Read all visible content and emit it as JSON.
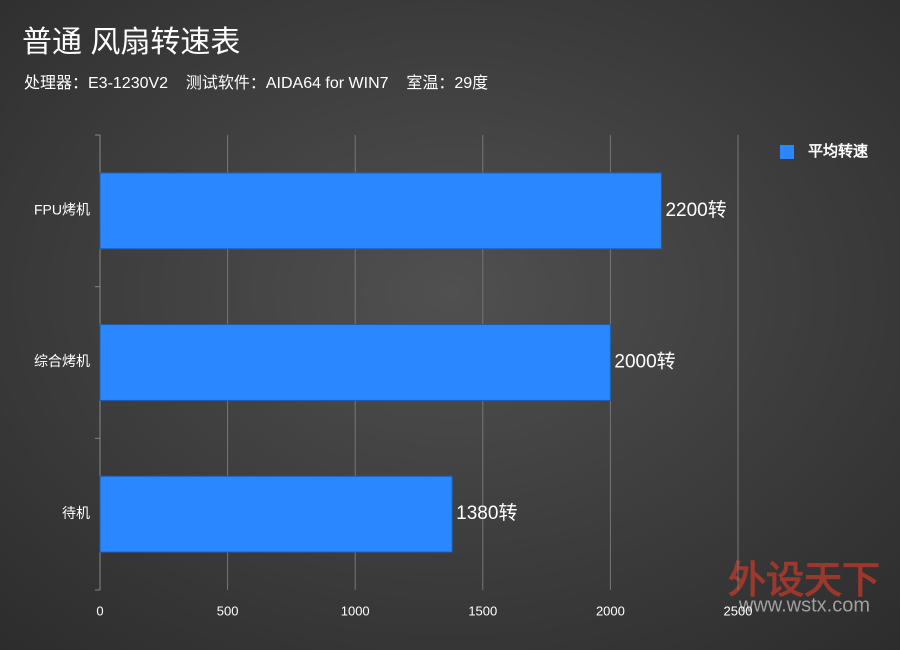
{
  "chart_data": {
    "type": "hbar",
    "title": "普通 风扇转速表",
    "subtitle": "处理器：E3-1230V2    测试软件：AIDA64 for WIN7    室温：29度",
    "categories": [
      "FPU烤机",
      "综合烤机",
      "待机"
    ],
    "series": [
      {
        "name": "平均转速",
        "color": "#2b87ff",
        "values": [
          2200,
          2000,
          1380
        ],
        "value_labels": [
          "2200转",
          "2000转",
          "1380转"
        ]
      }
    ],
    "xlim": [
      0,
      2500
    ],
    "xticks": [
      0,
      500,
      1000,
      1500,
      2000,
      2500
    ],
    "grid": true,
    "legend": "top-right"
  },
  "watermark": {
    "brand": "外设天下",
    "url": "www.wstx.com"
  }
}
